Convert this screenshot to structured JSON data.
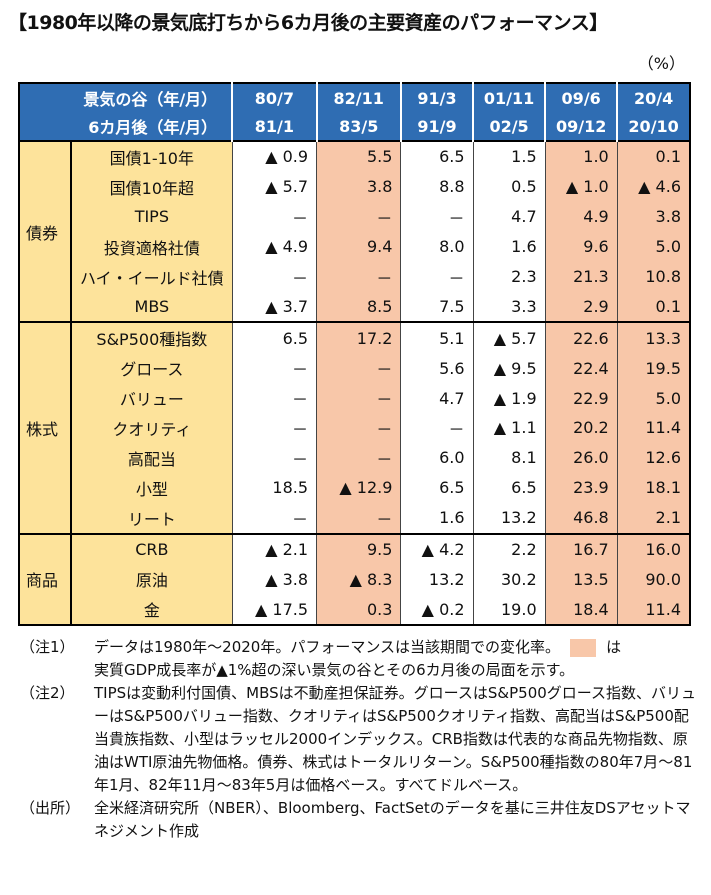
{
  "title": "【1980年以降の景気底打ちから6カ月後の主要資産のパフォーマンス】",
  "unit": "（%）",
  "header": {
    "row1_label": "景気の谷（年/月）",
    "row2_label": "6カ月後（年/月）",
    "columns": [
      {
        "trough": "80/7",
        "after": "81/1"
      },
      {
        "trough": "82/11",
        "after": "83/5"
      },
      {
        "trough": "91/3",
        "after": "91/9"
      },
      {
        "trough": "01/11",
        "after": "02/5"
      },
      {
        "trough": "09/6",
        "after": "09/12"
      },
      {
        "trough": "20/4",
        "after": "20/10"
      }
    ],
    "shaded_columns": [
      1,
      4,
      5
    ]
  },
  "colors": {
    "header": "#2f6db3",
    "label_bg": "#fde39b",
    "shade": "#f8c7a9"
  },
  "sections": [
    {
      "name": "債券",
      "rows": [
        {
          "label": "国債1-10年",
          "values": [
            "▲ 0.9",
            "5.5",
            "6.5",
            "1.5",
            "1.0",
            "0.1"
          ]
        },
        {
          "label": "国債10年超",
          "values": [
            "▲ 5.7",
            "3.8",
            "8.8",
            "0.5",
            "▲ 1.0",
            "▲ 4.6"
          ]
        },
        {
          "label": "TIPS",
          "values": [
            "－",
            "－",
            "－",
            "4.7",
            "4.9",
            "3.8"
          ]
        },
        {
          "label": "投資適格社債",
          "values": [
            "▲ 4.9",
            "9.4",
            "8.0",
            "1.6",
            "9.6",
            "5.0"
          ]
        },
        {
          "label": "ハイ・イールド社債",
          "values": [
            "－",
            "－",
            "－",
            "2.3",
            "21.3",
            "10.8"
          ]
        },
        {
          "label": "MBS",
          "values": [
            "▲ 3.7",
            "8.5",
            "7.5",
            "3.3",
            "2.9",
            "0.1"
          ]
        }
      ]
    },
    {
      "name": "株式",
      "rows": [
        {
          "label": "S&P500種指数",
          "values": [
            "6.5",
            "17.2",
            "5.1",
            "▲ 5.7",
            "22.6",
            "13.3"
          ]
        },
        {
          "label": "グロース",
          "values": [
            "－",
            "－",
            "5.6",
            "▲ 9.5",
            "22.4",
            "19.5"
          ]
        },
        {
          "label": "バリュー",
          "values": [
            "－",
            "－",
            "4.7",
            "▲ 1.9",
            "22.9",
            "5.0"
          ]
        },
        {
          "label": "クオリティ",
          "values": [
            "－",
            "－",
            "－",
            "▲ 1.1",
            "20.2",
            "11.4"
          ]
        },
        {
          "label": "高配当",
          "values": [
            "－",
            "－",
            "6.0",
            "8.1",
            "26.0",
            "12.6"
          ]
        },
        {
          "label": "小型",
          "values": [
            "18.5",
            "▲ 12.9",
            "6.5",
            "6.5",
            "23.9",
            "18.1"
          ]
        },
        {
          "label": "リート",
          "values": [
            "－",
            "－",
            "1.6",
            "13.2",
            "46.8",
            "2.1"
          ]
        }
      ]
    },
    {
      "name": "商品",
      "rows": [
        {
          "label": "CRB",
          "values": [
            "▲ 2.1",
            "9.5",
            "▲ 4.2",
            "2.2",
            "16.7",
            "16.0"
          ]
        },
        {
          "label": "原油",
          "values": [
            "▲ 3.8",
            "▲ 8.3",
            "13.2",
            "30.2",
            "13.5",
            "90.0"
          ]
        },
        {
          "label": "金",
          "values": [
            "▲ 17.5",
            "0.3",
            "▲ 0.2",
            "19.0",
            "18.4",
            "11.4"
          ]
        }
      ]
    }
  ],
  "notes": [
    {
      "key": "（注1）",
      "text1": "データは1980年～2020年。パフォーマンスは当該期間での変化率。",
      "text2": "は",
      "text3": "実質GDP成長率が▲1%超の深い景気の谷とその6カ月後の局面を示す。"
    },
    {
      "key": "（注2）",
      "text": "TIPSは変動利付国債、MBSは不動産担保証券。グロースはS&P500グロース指数、バリューはS&P500バリュー指数、クオリティはS&P500クオリティ指数、高配当はS&P500配当貴族指数、小型はラッセル2000インデックス。CRB指数は代表的な商品先物指数、原油はWTI原油先物価格。債券、株式はトータルリターン。S&P500種指数の80年7月～81年1月、82年11月～83年5月は価格ベース。すべてドルベース。"
    },
    {
      "key": "（出所）",
      "text": "全米経済研究所（NBER）、Bloomberg、FactSetのデータを基に三井住友DSアセットマネジメント作成"
    }
  ]
}
